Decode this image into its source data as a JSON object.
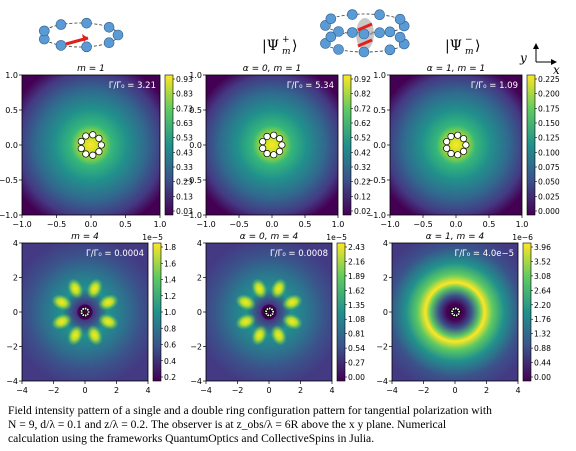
{
  "header": {
    "ket_plus": "|Ψ",
    "ket_plus_sup": "+",
    "ket_plus_sub": "m",
    "ket_minus": "|Ψ",
    "ket_minus_sup": "−",
    "ket_minus_sub": "m",
    "axis_y": "y",
    "axis_x": "x"
  },
  "panels": [
    {
      "title": "m = 1",
      "ratio": "Γ/Γ₀ = 3.21",
      "ticks": [
        "0.93",
        "0.83",
        "0.73",
        "0.63",
        "0.53",
        "0.43",
        "0.33",
        "0.23",
        "0.13",
        "0.03"
      ],
      "exponent": "",
      "xticks": [
        "−1.0",
        "−0.5",
        "0.0",
        "0.5",
        "1.0"
      ],
      "yticks": [
        "1.0",
        "0.5",
        "0.0",
        "−0.5",
        "−1.0"
      ],
      "pattern": "center",
      "rings": 1
    },
    {
      "title": "α = 0, m = 1",
      "ratio": "Γ/Γ₀ = 5.34",
      "ticks": [
        "0.92",
        "0.82",
        "0.72",
        "0.62",
        "0.52",
        "0.42",
        "0.32",
        "0.22",
        "0.12",
        "0.02"
      ],
      "exponent": "",
      "xticks": [
        "−1.0",
        "−0.5",
        "0.0",
        "0.5",
        "1.0"
      ],
      "yticks": [
        "1.0",
        "0.5",
        "0.0",
        "−0.5",
        "−1.0"
      ],
      "pattern": "center",
      "rings": 1
    },
    {
      "title": "α = 1, m = 1",
      "ratio": "Γ/Γ₀ = 1.09",
      "ticks": [
        "0.225",
        "0.200",
        "0.175",
        "0.150",
        "0.125",
        "0.100",
        "0.075",
        "0.050",
        "0.025",
        "0.000"
      ],
      "exponent": "",
      "xticks": [
        "−1.0",
        "−0.5",
        "0.0",
        "0.5",
        "1.0"
      ],
      "yticks": [
        "1.0",
        "0.5",
        "0.0",
        "−0.5",
        "−1.0"
      ],
      "pattern": "center",
      "rings": 1
    },
    {
      "title": "m = 4",
      "ratio": "Γ/Γ₀ = 0.0004",
      "ticks": [
        "1.8",
        "1.6",
        "1.4",
        "1.2",
        "1.0",
        "0.8",
        "0.6",
        "0.4",
        "0.2"
      ],
      "exponent": "1e−5",
      "xticks": [
        "−4",
        "−2",
        "0",
        "2",
        "4"
      ],
      "yticks": [
        "4",
        "2",
        "0",
        "−2",
        "−4"
      ],
      "pattern": "lobes",
      "rings": 1
    },
    {
      "title": "α = 0, m = 4",
      "ratio": "Γ/Γ₀ = 0.0008",
      "ticks": [
        "2.43",
        "2.16",
        "1.89",
        "1.62",
        "1.35",
        "1.08",
        "0.81",
        "0.54",
        "0.27",
        "0.00"
      ],
      "exponent": "1e−5",
      "xticks": [
        "−4",
        "−2",
        "0",
        "2",
        "4"
      ],
      "yticks": [
        "4",
        "2",
        "0",
        "−2",
        "−4"
      ],
      "pattern": "lobes",
      "rings": 2
    },
    {
      "title": "α = 1, m = 4",
      "ratio": "Γ/Γ₀ = 4.0e−5",
      "ticks": [
        "3.96",
        "3.52",
        "3.08",
        "2.64",
        "2.20",
        "1.76",
        "1.32",
        "0.88",
        "0.44",
        "0.00"
      ],
      "exponent": "1e−6",
      "xticks": [
        "−4",
        "−2",
        "0",
        "2",
        "4"
      ],
      "yticks": [
        "4",
        "2",
        "0",
        "−2",
        "−4"
      ],
      "pattern": "ring",
      "rings": 2
    }
  ],
  "caption": {
    "line1": "Field intensity pattern of a single and a double ring configuration pattern for tangential polarization with",
    "line2": "N = 9,  d/λ = 0.1 and z/λ = 0.2. The observer is at z_obs/λ = 6R above   the   x  y  plane.  Numerical",
    "line3": "calculation using the frameworks QuantumOptics and CollectiveSpins in Julia."
  },
  "colors": {
    "viridis_low": "#440154",
    "viridis_mid": "#21918c",
    "viridis_high": "#fde725",
    "atom": "#5b9bd5",
    "arrow": "#e0201c"
  }
}
